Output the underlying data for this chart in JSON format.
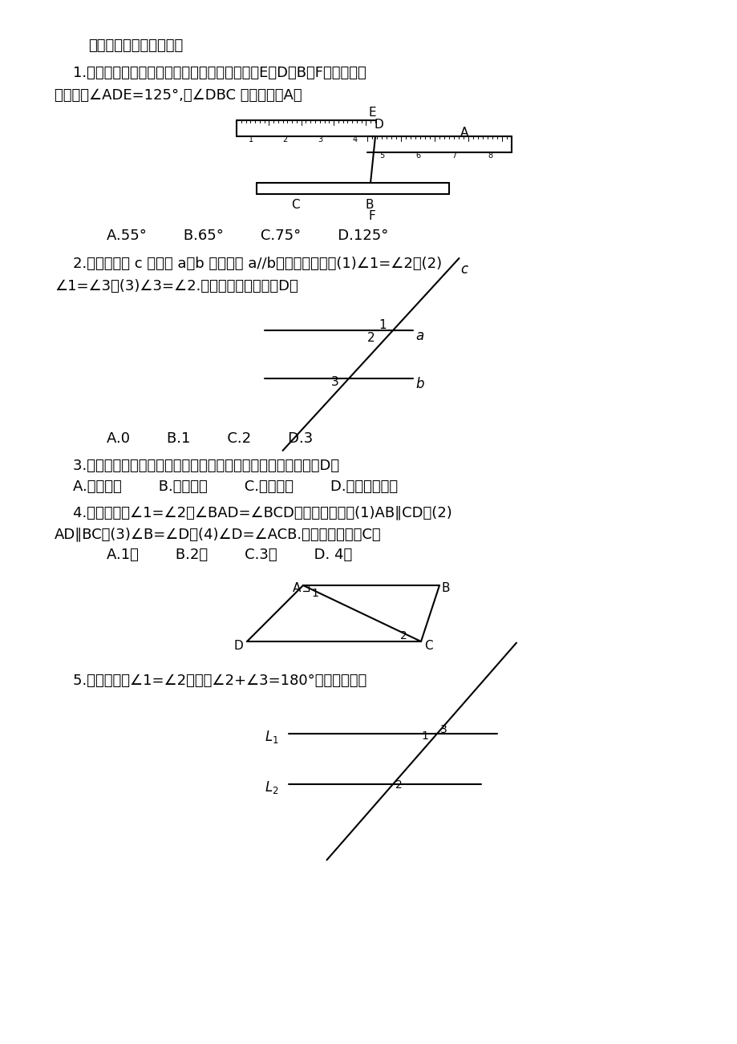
{
  "bg_color": "#ffffff",
  "section_title": "三、运用新知，深化理解",
  "q1_text1": "    1.如图，一把长方形直尺沿直线断开并错位，点E，D，B，F在同一条直",
  "q1_text2": "线上，若∠ADE=125°,则∠DBC 的度数为（A）",
  "q1_options": "    A.55°        B.65°        C.75°        D.125°",
  "q2_text1": "    2.如图，直线 c 与直线 a，b 相交，且 a//b，则下列结论：(1)∠1=∠2；(2)",
  "q2_text2": "∠1=∠3；(3)∠3=∠2.其中正确的个数为（D）",
  "q2_options": "    A.0        B.1        C.2        D.3",
  "q3_text": "    3.如果两条直线被第三条直线所截，那么一组内错角的平分线（D）",
  "q3_options": "    A.互相垂直        B.互相平行        C.互相重合        D.以上均不正确",
  "q4_text1": "    4.如图，已知∠1=∠2，∠BAD=∠BCD，则下列结论：(1)AB∥CD；(2)",
  "q4_text2": "AD∥BC；(3)∠B=∠D；(4)∠D=∠ACB.其中正确的有（C）",
  "q4_options": "    A.1个        B.2个        C.3个        D. 4个",
  "q5_text": "    5.如图，如果∠1=∠2，那么∠2+∠3=180°吗？为什么？"
}
